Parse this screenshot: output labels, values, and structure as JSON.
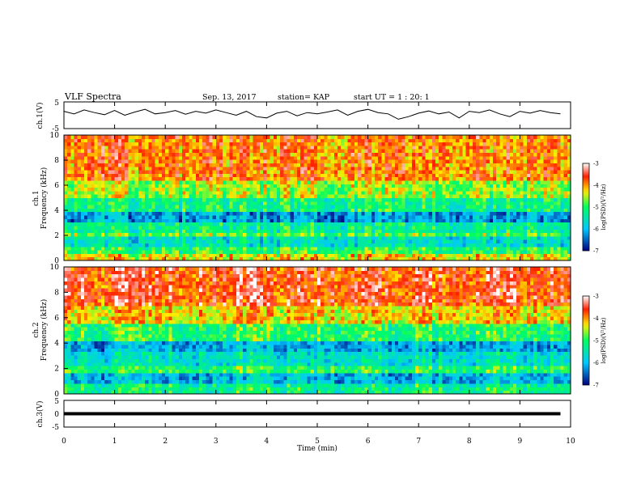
{
  "header": {
    "title": "VLF Spectra",
    "date": "Sep. 13, 2017",
    "station": "station= KAP",
    "start": "start  UT =   1 : 20: 1"
  },
  "colors": {
    "low": "#000080",
    "mid_low": "#00c8ff",
    "mid": "#00ff60",
    "mid_high": "#ffee00",
    "high": "#ff2000",
    "peak": "#ffffff"
  },
  "chart_data": [
    {
      "id": "ch1_waveform",
      "type": "line",
      "ylabel": "ch.1(V)",
      "ylim": [
        -5,
        5
      ],
      "yticks": [
        "5",
        "-5"
      ],
      "x": [
        0.0,
        0.2,
        0.4,
        0.6,
        0.8,
        1.0,
        1.2,
        1.4,
        1.6,
        1.8,
        2.0,
        2.2,
        2.4,
        2.6,
        2.8,
        3.0,
        3.2,
        3.4,
        3.6,
        3.8,
        4.0,
        4.2,
        4.4,
        4.6,
        4.8,
        5.0,
        5.2,
        5.4,
        5.6,
        5.8,
        6.0,
        6.2,
        6.4,
        6.6,
        6.8,
        7.0,
        7.2,
        7.4,
        7.6,
        7.8,
        8.0,
        8.2,
        8.4,
        8.6,
        8.8,
        9.0,
        9.2,
        9.4,
        9.6,
        9.8
      ],
      "values": [
        1.5,
        0.5,
        2.0,
        1.0,
        0.2,
        1.8,
        0.0,
        1.2,
        2.2,
        0.5,
        1.0,
        1.8,
        0.4,
        1.5,
        0.8,
        2.0,
        1.0,
        0.0,
        1.5,
        -0.5,
        -1.0,
        0.8,
        1.5,
        -0.2,
        1.0,
        0.5,
        1.2,
        2.0,
        0.0,
        1.5,
        2.2,
        1.0,
        0.5,
        -1.5,
        -0.5,
        0.8,
        1.6,
        0.5,
        1.2,
        -1.0,
        1.5,
        1.0,
        2.0,
        0.5,
        -0.5,
        1.5,
        0.8,
        1.8,
        1.0,
        0.5
      ]
    },
    {
      "id": "ch1_spectrogram",
      "type": "heatmap",
      "ylabel_top": "ch.1",
      "ylabel": "Frequency (kHz)",
      "ylim": [
        0,
        10
      ],
      "yticks": [
        "0",
        "2",
        "4",
        "6",
        "8",
        "10"
      ],
      "xlim": [
        0,
        10
      ],
      "value_range": [
        -7,
        -3
      ],
      "colorbar_label": "log(PSD)(V²/Hz)",
      "colorbar_ticks": [
        "-3",
        "-4",
        "-5",
        "-6",
        "-7"
      ],
      "frequency_bands": [
        {
          "f_low": 0.0,
          "f_high": 0.6,
          "level": -4.3
        },
        {
          "f_low": 0.6,
          "f_high": 1.2,
          "level": -5.0
        },
        {
          "f_low": 1.2,
          "f_high": 2.0,
          "level": -5.6
        },
        {
          "f_low": 2.0,
          "f_high": 2.2,
          "level": -4.8
        },
        {
          "f_low": 2.2,
          "f_high": 3.0,
          "level": -5.3
        },
        {
          "f_low": 3.0,
          "f_high": 3.8,
          "level": -6.2
        },
        {
          "f_low": 3.8,
          "f_high": 5.0,
          "level": -5.2
        },
        {
          "f_low": 5.0,
          "f_high": 6.5,
          "level": -4.6
        },
        {
          "f_low": 6.5,
          "f_high": 10.0,
          "level": -3.9
        }
      ]
    },
    {
      "id": "ch2_spectrogram",
      "type": "heatmap",
      "ylabel_top": "ch.2",
      "ylabel": "Frequency (kHz)",
      "ylim": [
        0,
        10
      ],
      "yticks": [
        "0",
        "2",
        "4",
        "6",
        "8",
        "10"
      ],
      "xlim": [
        0,
        10
      ],
      "value_range": [
        -7,
        -3
      ],
      "colorbar_label": "log(PSD)(V²/Hz)",
      "colorbar_ticks": [
        "-3",
        "-4",
        "-5",
        "-6",
        "-7"
      ],
      "frequency_bands": [
        {
          "f_low": 0.0,
          "f_high": 0.8,
          "level": -5.2
        },
        {
          "f_low": 0.8,
          "f_high": 1.8,
          "level": -6.0
        },
        {
          "f_low": 1.8,
          "f_high": 2.2,
          "level": -5.0
        },
        {
          "f_low": 2.2,
          "f_high": 3.4,
          "level": -5.6
        },
        {
          "f_low": 3.4,
          "f_high": 4.2,
          "level": -6.1
        },
        {
          "f_low": 4.2,
          "f_high": 5.5,
          "level": -5.0
        },
        {
          "f_low": 5.5,
          "f_high": 7.0,
          "level": -4.2
        },
        {
          "f_low": 7.0,
          "f_high": 10.0,
          "level": -3.6
        }
      ]
    },
    {
      "id": "ch3_waveform",
      "type": "line",
      "ylabel": "ch.3(V)",
      "ylim": [
        -5,
        5
      ],
      "yticks": [
        "5",
        "0",
        "-5"
      ],
      "x": [
        0,
        9.8
      ],
      "values": [
        0,
        0
      ]
    }
  ],
  "xaxis": {
    "label": "Time (min)",
    "xlim": [
      0,
      10
    ],
    "ticks": [
      "0",
      "1",
      "2",
      "3",
      "4",
      "5",
      "6",
      "7",
      "8",
      "9",
      "10"
    ]
  }
}
